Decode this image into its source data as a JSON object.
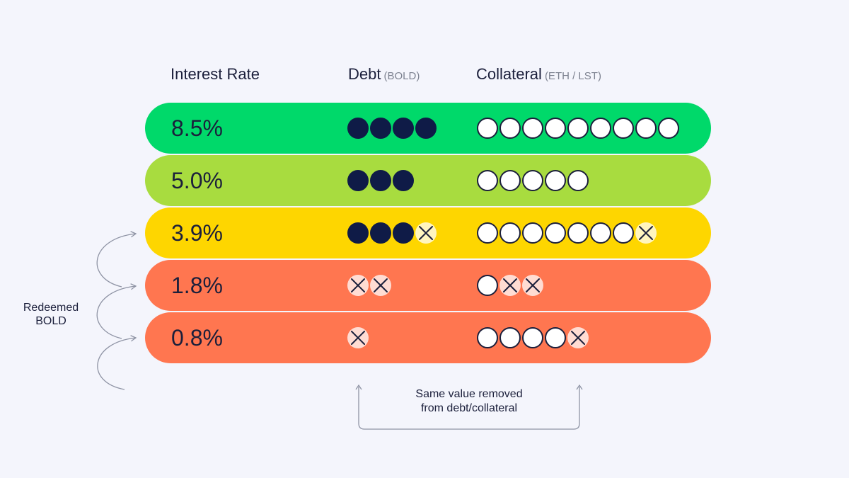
{
  "headers": {
    "rate": "Interest Rate",
    "debt": "Debt",
    "debt_unit": "(BOLD)",
    "collateral": "Collateral",
    "collateral_unit": "(ETH / LST)"
  },
  "rows": [
    {
      "rate": "8.5%",
      "color": "#00D96A",
      "debt": {
        "kept": 4,
        "removed": 0
      },
      "collateral": {
        "kept": 9,
        "removed": 0
      }
    },
    {
      "rate": "5.0%",
      "color": "#A8DC3F",
      "debt": {
        "kept": 3,
        "removed": 0
      },
      "collateral": {
        "kept": 5,
        "removed": 0
      }
    },
    {
      "rate": "3.9%",
      "color": "#FED600",
      "debt": {
        "kept": 3,
        "removed": 1
      },
      "collateral": {
        "kept": 7,
        "removed": 1
      }
    },
    {
      "rate": "1.8%",
      "color": "#FF7650",
      "debt": {
        "kept": 0,
        "removed": 2
      },
      "collateral": {
        "kept": 1,
        "removed": 2
      }
    },
    {
      "rate": "0.8%",
      "color": "#FF7650",
      "debt": {
        "kept": 0,
        "removed": 1
      },
      "collateral": {
        "kept": 4,
        "removed": 1
      }
    }
  ],
  "side_label": [
    "Redeemed",
    "BOLD"
  ],
  "note": [
    "Same value removed",
    "from debt/collateral"
  ],
  "colors": {
    "debt_circle": "#0F1B47",
    "outline": "#1B1F3B",
    "arrow": "#8E93A4",
    "background": "#F4F5FC"
  }
}
